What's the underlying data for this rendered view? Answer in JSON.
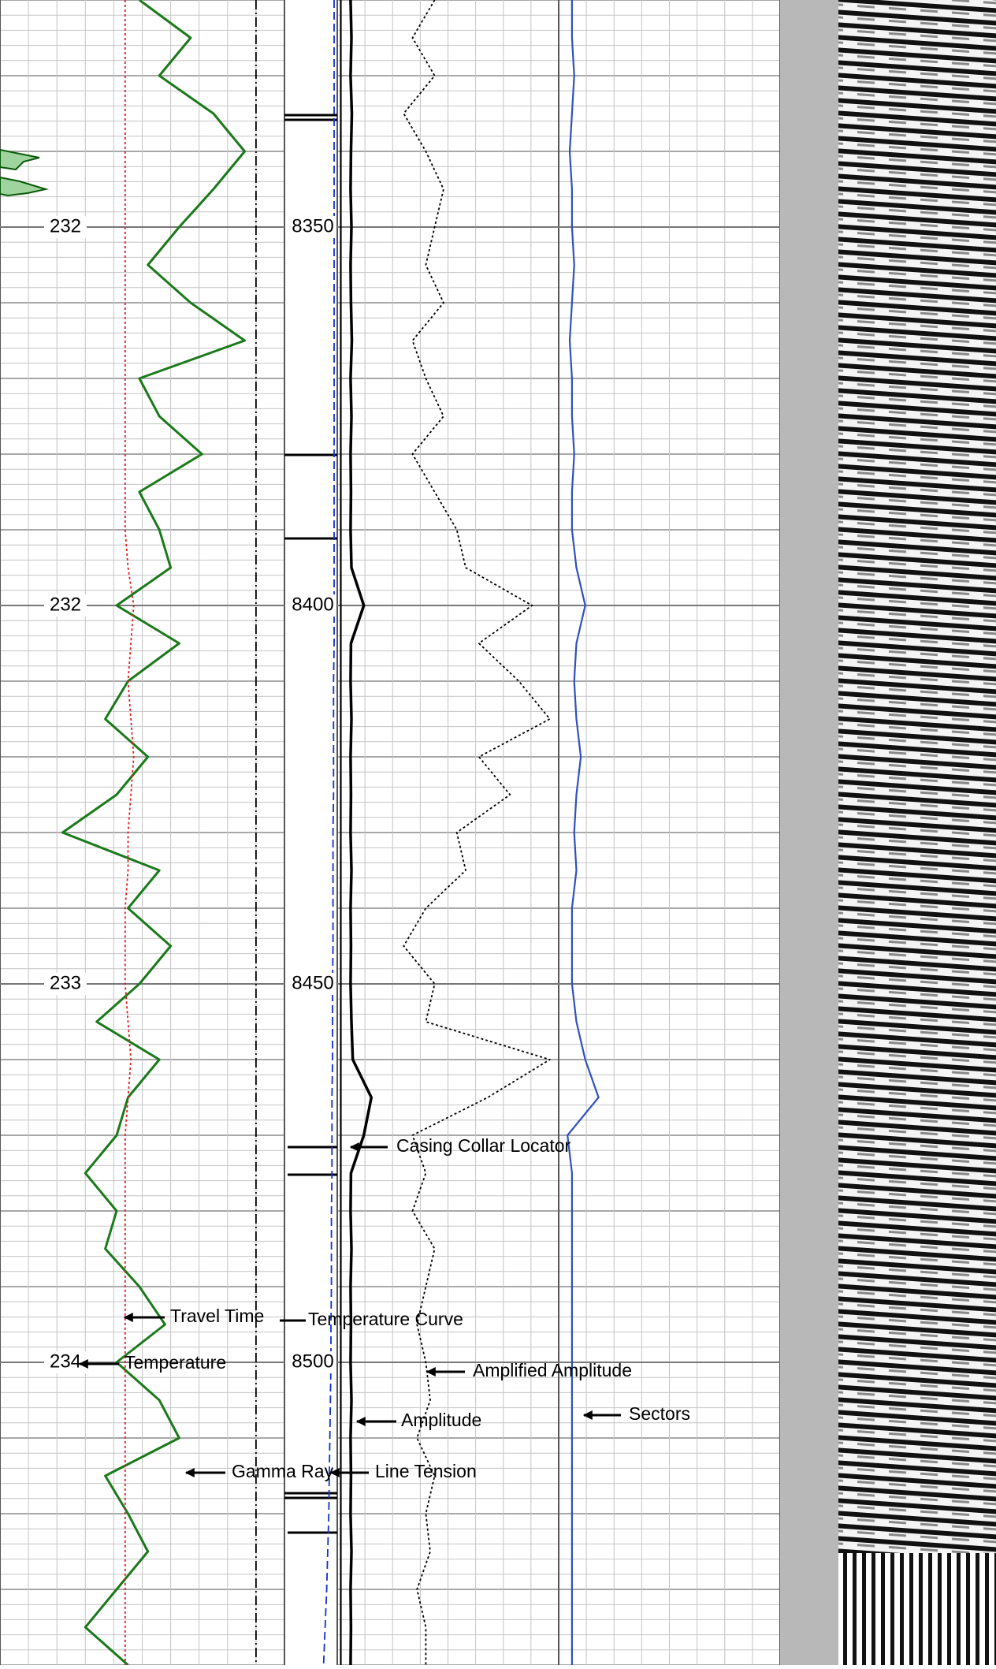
{
  "chart_data": {
    "type": "well-log",
    "ylim": [
      8320,
      8540
    ],
    "yticks": [
      8350,
      8400,
      8450,
      8500
    ],
    "xlim": [
      0,
      100
    ],
    "grid": true,
    "temperature_labels": {
      "name": "Temperature",
      "values": [
        232,
        232,
        233,
        234
      ]
    },
    "depth": [
      8320,
      8325,
      8330,
      8335,
      8340,
      8345,
      8350,
      8355,
      8360,
      8365,
      8370,
      8375,
      8380,
      8385,
      8390,
      8395,
      8400,
      8405,
      8410,
      8415,
      8420,
      8425,
      8430,
      8435,
      8440,
      8445,
      8450,
      8455,
      8460,
      8465,
      8470,
      8475,
      8480,
      8485,
      8490,
      8495,
      8500,
      8505,
      8510,
      8515,
      8520,
      8525,
      8530,
      8535,
      8540
    ],
    "series": [
      {
        "name": "Gamma Ray",
        "color": "#1a7a1a",
        "style": "solid",
        "track": "1",
        "values": [
          49,
          67,
          56,
          75,
          86,
          75,
          63,
          52,
          67,
          86,
          49,
          56,
          71,
          49,
          56,
          60,
          41,
          63,
          45,
          37,
          52,
          41,
          22,
          56,
          45,
          60,
          49,
          34,
          56,
          45,
          41,
          30,
          41,
          37,
          49,
          58,
          41,
          56,
          63,
          37,
          45,
          52,
          41,
          30,
          45
        ]
      },
      {
        "name": "Travel Time",
        "color": "#e02020",
        "style": "dotted",
        "track": "1",
        "values": [
          44,
          44,
          44,
          44,
          44,
          44,
          44,
          44,
          44,
          44,
          44,
          44,
          44,
          44,
          44,
          45,
          47,
          46,
          45,
          46,
          47,
          46,
          45,
          45,
          44,
          44,
          44,
          45,
          46,
          45,
          44,
          44,
          44,
          44,
          44,
          44,
          44,
          44,
          44,
          44,
          44,
          44,
          44,
          44,
          44
        ]
      },
      {
        "name": "Temperature Curve",
        "color": "#000000",
        "style": "dashdot",
        "track": "1",
        "values": [
          90,
          90,
          90,
          90,
          90,
          90,
          90,
          90,
          90,
          90,
          90,
          90,
          90,
          90,
          90,
          90,
          90,
          90,
          90,
          90,
          90,
          90,
          90,
          90,
          90,
          90,
          90,
          90,
          90,
          90,
          90,
          90,
          90,
          90,
          90,
          90,
          90,
          90,
          90,
          90,
          90,
          90,
          90,
          90,
          90
        ]
      },
      {
        "name": "Line Tension",
        "color": "#1030d0",
        "style": "dashed",
        "track": "depth",
        "values": [
          94,
          94,
          94,
          94,
          94,
          94,
          94,
          94,
          94,
          94,
          94,
          94,
          94,
          94,
          94,
          94,
          94,
          94,
          93,
          93,
          93,
          93,
          92,
          92,
          92,
          92,
          91,
          91,
          91,
          90,
          90,
          90,
          89,
          89,
          89,
          88,
          88,
          87,
          86,
          85,
          84,
          82,
          80,
          77,
          74
        ]
      },
      {
        "name": "Casing Collar Locator",
        "color": "#000000",
        "style": "thick",
        "track": "2",
        "values": [
          3,
          3.2,
          3,
          3.3,
          3.1,
          3,
          3.2,
          3,
          3.1,
          3.3,
          3,
          3.2,
          3,
          3.1,
          3,
          3.2,
          6,
          3.1,
          3,
          3.2,
          3,
          3.1,
          3,
          3.2,
          3,
          3.1,
          3,
          3.2,
          3.5,
          7.7,
          6,
          3.1,
          3,
          3.2,
          3,
          3.1,
          3,
          3.2,
          3,
          3.1,
          3,
          3.2,
          3,
          3.1,
          3
        ]
      },
      {
        "name": "Amplitude",
        "color": "#000000",
        "style": "solid",
        "track": "2",
        "values": [
          0.8,
          0.8,
          0.8,
          0.8,
          0.8,
          0.8,
          0.8,
          0.8,
          0.8,
          0.8,
          0.8,
          0.8,
          0.8,
          0.8,
          0.8,
          0.8,
          0.8,
          0.8,
          0.8,
          0.8,
          0.8,
          0.8,
          0.8,
          0.8,
          0.8,
          0.8,
          0.8,
          0.8,
          0.8,
          0.8,
          0.8,
          0.8,
          0.8,
          0.8,
          0.8,
          0.8,
          0.8,
          0.8,
          0.8,
          0.8,
          0.8,
          0.8,
          0.8,
          0.8,
          0.8
        ]
      },
      {
        "name": "Amplified Amplitude",
        "color": "#000000",
        "style": "dotted",
        "track": "2",
        "values": [
          22,
          17,
          22,
          15,
          20,
          24,
          22,
          20,
          24,
          17,
          20,
          24,
          17,
          22,
          27,
          29,
          44,
          32,
          41,
          48,
          32,
          39,
          27,
          29,
          20,
          15,
          22,
          20,
          48,
          34,
          17,
          20,
          17,
          22,
          20,
          18,
          20,
          21,
          18,
          22,
          20,
          21,
          18,
          20,
          20
        ]
      },
      {
        "name": "Sectors",
        "color": "#3050c0",
        "style": "solid",
        "track": "2",
        "values": [
          53,
          53,
          53.5,
          53,
          52.5,
          53,
          53,
          53.5,
          53,
          52.5,
          53,
          53,
          53.5,
          53,
          53,
          54,
          56,
          54,
          53.5,
          54,
          55,
          54,
          53.5,
          54,
          53,
          53,
          53,
          54,
          56,
          59,
          52,
          53,
          53,
          53,
          53,
          53,
          53,
          53,
          53,
          53,
          53,
          53,
          53,
          53,
          53
        ]
      }
    ]
  }
}
